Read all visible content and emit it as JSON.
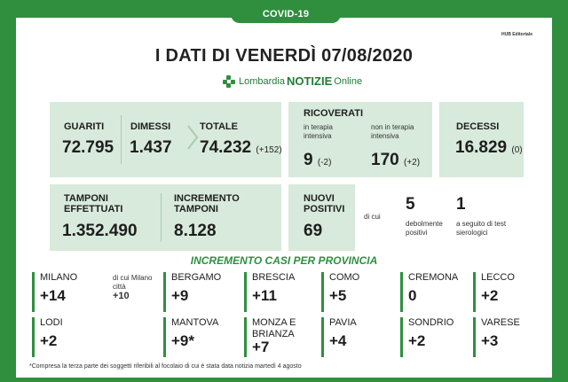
{
  "header": {
    "tagline": "COVID-19 LOMBARDIA",
    "publisher": "HUB Editoriale",
    "title": "I DATI DI VENERDÌ 07/08/2020",
    "brand_left": "Lombardia",
    "brand_mid": "NOTIZIE",
    "brand_right": "Online"
  },
  "summary": {
    "guariti": {
      "label": "GUARITI",
      "value": "72.795"
    },
    "dimessi": {
      "label": "DIMESSI",
      "value": "1.437"
    },
    "totale": {
      "label": "TOTALE",
      "value": "74.232",
      "delta": "(+152)"
    },
    "ricoverati": {
      "label": "RICOVERATI",
      "intensiva_label": "in terapia intensiva",
      "intensiva_value": "9",
      "intensiva_delta": "(-2)",
      "non_intensiva_label": "non in terapia intensiva",
      "non_intensiva_value": "170",
      "non_intensiva_delta": "(+2)"
    },
    "decessi": {
      "label": "DECESSI",
      "value": "16.829",
      "delta": "(0)"
    }
  },
  "tests": {
    "tamponi": {
      "label": "TAMPONI EFFETTUATI",
      "value": "1.352.490"
    },
    "incremento": {
      "label": "INCREMENTO TAMPONI",
      "value": "8.128"
    },
    "nuovi_positivi": {
      "label": "NUOVI POSITIVI",
      "value": "69"
    },
    "di_cui": "di cui",
    "debolmente": {
      "value": "5",
      "label": "debolmente positivi"
    },
    "sierologici": {
      "value": "1",
      "label": "a seguito di test sierologici"
    }
  },
  "provinces_title": "INCREMENTO CASI PER PROVINCIA",
  "provinces": [
    {
      "name": "MILANO",
      "value": "+14"
    },
    {
      "name": "BERGAMO",
      "value": "+9"
    },
    {
      "name": "BRESCIA",
      "value": "+11"
    },
    {
      "name": "COMO",
      "value": "+5"
    },
    {
      "name": "CREMONA",
      "value": "0"
    },
    {
      "name": "LECCO",
      "value": "+2"
    },
    {
      "name": "LODI",
      "value": "+2"
    },
    {
      "name": "MANTOVA",
      "value": "+9*"
    },
    {
      "name": "MONZA E BRIANZA",
      "value": "+7"
    },
    {
      "name": "PAVIA",
      "value": "+4"
    },
    {
      "name": "SONDRIO",
      "value": "+2"
    },
    {
      "name": "VARESE",
      "value": "+3"
    }
  ],
  "milano_note": {
    "text": "di cui Milano città",
    "value": "+10"
  },
  "footnote": "*Compresa la terza parte dei soggetti riferibili al focolaio di cui è stata data notizia martedì 4 agosto",
  "colors": {
    "brand_green": "#2f8f3f",
    "panel": "#d8eadb"
  }
}
